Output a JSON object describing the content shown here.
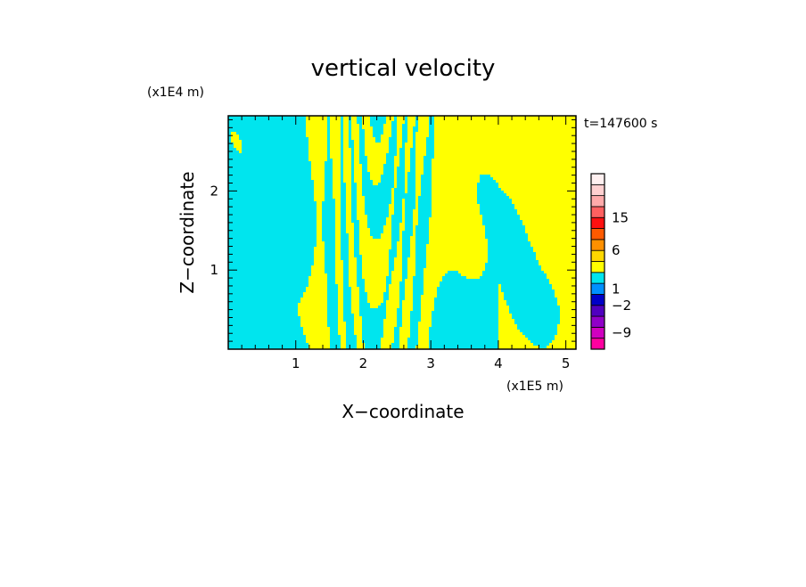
{
  "chart_data": {
    "type": "heatmap",
    "title": "vertical velocity",
    "xlabel": "X−coordinate",
    "ylabel": "Z−coordinate",
    "x_unit": "(x1E5 m)",
    "y_unit": "(x1E4 m)",
    "time_label": "t=147600 s",
    "xlim": [
      0,
      5.15
    ],
    "ylim": [
      0,
      2.95
    ],
    "x_ticks": [
      {
        "value": 1,
        "label": "1"
      },
      {
        "value": 2,
        "label": "2"
      },
      {
        "value": 3,
        "label": "3"
      },
      {
        "value": 4,
        "label": "4"
      },
      {
        "value": 5,
        "label": "5"
      }
    ],
    "y_ticks": [
      {
        "value": 1,
        "label": "1"
      },
      {
        "value": 2,
        "label": "2"
      }
    ],
    "field_colors": {
      "positive": "#ffff00",
      "negative": "#00e5ee"
    },
    "colorbar": {
      "levels": [
        {
          "color": "#ff00a0"
        },
        {
          "color": "#d000c0"
        },
        {
          "color": "#9000c8"
        },
        {
          "color": "#5000c0"
        },
        {
          "color": "#0000c8"
        },
        {
          "color": "#0090ff"
        },
        {
          "color": "#00e5ee"
        },
        {
          "color": "#ffff00"
        },
        {
          "color": "#ffd800"
        },
        {
          "color": "#ff9000"
        },
        {
          "color": "#ff5a00"
        },
        {
          "color": "#ff1010"
        },
        {
          "color": "#ff6060"
        },
        {
          "color": "#ffaaaa"
        },
        {
          "color": "#ffd0d0"
        },
        {
          "color": "#fff0f0"
        }
      ],
      "labels": [
        {
          "value": -9,
          "label": "−9"
        },
        {
          "value": -2,
          "label": "−2"
        },
        {
          "value": 1,
          "label": "1"
        },
        {
          "value": 6,
          "label": "6"
        },
        {
          "value": 15,
          "label": "15"
        }
      ]
    }
  }
}
